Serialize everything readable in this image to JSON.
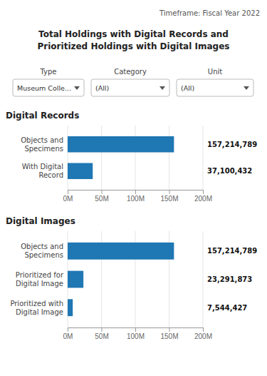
{
  "title": [
    "Total Holdings with Digital Records and",
    "Prioritized Holdings with Digital Images"
  ],
  "timeframe": "Timeframe:  Fiscal Year 2022",
  "filters": [
    {
      "label": "Type",
      "value": "Museum Colle..."
    },
    {
      "label": "Category",
      "value": "(All)"
    },
    {
      "label": "Unit",
      "value": "(All)"
    }
  ],
  "chart_data": [
    {
      "type": "bar",
      "orientation": "horizontal",
      "title": "Digital Records",
      "categories": [
        "Objects and\nSpecimens",
        "With Digital\nRecord"
      ],
      "values": [
        157214789,
        37100432
      ],
      "value_labels": [
        "157,214,789",
        "37,100,432"
      ],
      "data_labels": true,
      "xlim": [
        0,
        200000000
      ],
      "xticks": [
        {
          "value": 0,
          "label": "0M"
        },
        {
          "value": 50000000,
          "label": "50M"
        },
        {
          "value": 100000000,
          "label": "100M"
        },
        {
          "value": 150000000,
          "label": "150M"
        },
        {
          "value": 200000000,
          "label": "200M"
        }
      ],
      "grid": true
    },
    {
      "type": "bar",
      "orientation": "horizontal",
      "title": "Digital Images",
      "categories": [
        "Objects and\nSpecimens",
        "Prioritized for\nDigital Image",
        "Prioritized with\nDigital Image"
      ],
      "values": [
        157214789,
        23291873,
        7544427
      ],
      "value_labels": [
        "157,214,789",
        "23,291,873",
        "7,544,427"
      ],
      "data_labels": true,
      "xlim": [
        0,
        200000000
      ],
      "xticks": [
        {
          "value": 0,
          "label": "0M"
        },
        {
          "value": 50000000,
          "label": "50M"
        },
        {
          "value": 100000000,
          "label": "100M"
        },
        {
          "value": 150000000,
          "label": "150M"
        },
        {
          "value": 200000000,
          "label": "200M"
        }
      ],
      "grid": true
    }
  ]
}
